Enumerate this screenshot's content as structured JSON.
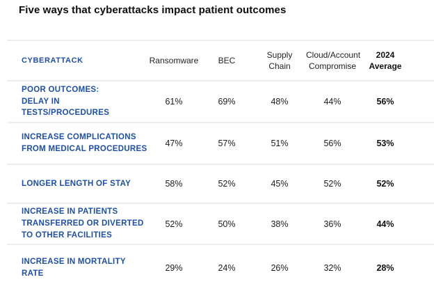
{
  "title": "Five ways that cyberattacks impact patient outcomes",
  "colors": {
    "accent_blue": "#1e4fa6",
    "divider": "#ededed",
    "text_dark": "#1c1c1c"
  },
  "table": {
    "header": {
      "label": "CYBERATTACK",
      "columns": [
        "Ransomware",
        "BEC",
        "Supply\nChain",
        "Cloud/Account\nCompromise",
        "2024\nAverage"
      ]
    },
    "rows": [
      {
        "label": "POOR OUTCOMES:\nDELAY IN TESTS/PROCEDURES",
        "values": [
          "61%",
          "69%",
          "48%",
          "44%",
          "56%"
        ]
      },
      {
        "label": "INCREASE COMPLICATIONS\nFROM MEDICAL PROCEDURES",
        "values": [
          "47%",
          "57%",
          "51%",
          "56%",
          "53%"
        ]
      },
      {
        "label": "LONGER LENGTH OF STAY",
        "values": [
          "58%",
          "52%",
          "45%",
          "52%",
          "52%"
        ]
      },
      {
        "label": "INCREASE IN PATIENTS\nTRANSFERRED OR DIVERTED\nTO OTHER FACILITIES",
        "values": [
          "52%",
          "50%",
          "38%",
          "36%",
          "44%"
        ]
      },
      {
        "label": "INCREASE IN MORTALITY RATE",
        "values": [
          "29%",
          "24%",
          "26%",
          "32%",
          "28%"
        ]
      }
    ]
  },
  "chart_data": {
    "type": "table",
    "title": "Five ways that cyberattacks impact patient outcomes",
    "row_header": "CYBERATTACK",
    "columns": [
      "Ransomware",
      "BEC",
      "Supply Chain",
      "Cloud/Account Compromise",
      "2024 Average"
    ],
    "rows": [
      {
        "label": "Poor outcomes: Delay in tests/procedures",
        "values_pct": [
          61,
          69,
          48,
          44,
          56
        ]
      },
      {
        "label": "Increase complications from medical procedures",
        "values_pct": [
          47,
          57,
          51,
          56,
          53
        ]
      },
      {
        "label": "Longer length of stay",
        "values_pct": [
          58,
          52,
          45,
          52,
          52
        ]
      },
      {
        "label": "Increase in patients transferred or diverted to other facilities",
        "values_pct": [
          52,
          50,
          38,
          36,
          44
        ]
      },
      {
        "label": "Increase in mortality rate",
        "values_pct": [
          29,
          24,
          26,
          32,
          28
        ]
      }
    ],
    "notes": "Average column (2024 Average) rendered bold; last column values bold"
  }
}
